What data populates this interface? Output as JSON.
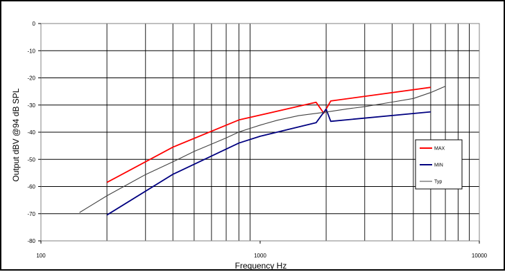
{
  "chart_data": {
    "type": "line",
    "title": "",
    "xlabel": "Frequency Hz",
    "ylabel": "Output dBV @94 dB SPL",
    "xscale": "log",
    "xlim": [
      100,
      10000
    ],
    "ylim": [
      -80,
      0
    ],
    "x_tick_labels": [
      "100",
      "1000",
      "10000"
    ],
    "y_tick_labels": [
      "0",
      "-10",
      "-20",
      "-30",
      "-40",
      "-50",
      "-60",
      "-70",
      "-80"
    ],
    "grid": true,
    "legend_position": "right",
    "series": [
      {
        "name": "MAX",
        "color": "#ff0000",
        "points": [
          [
            200,
            -58.5
          ],
          [
            400,
            -45.5
          ],
          [
            800,
            -35.5
          ],
          [
            1800,
            -29
          ],
          [
            1950,
            -33
          ],
          [
            2100,
            -28.5
          ],
          [
            6000,
            -23.5
          ]
        ]
      },
      {
        "name": "MIN",
        "color": "#000080",
        "points": [
          [
            200,
            -70.5
          ],
          [
            400,
            -55.5
          ],
          [
            800,
            -44
          ],
          [
            1000,
            -41.5
          ],
          [
            1800,
            -36.5
          ],
          [
            2000,
            -31.5
          ],
          [
            2100,
            -36
          ],
          [
            6000,
            -32.5
          ]
        ]
      },
      {
        "name": "Typ",
        "color": "#404040",
        "points": [
          [
            150,
            -69.5
          ],
          [
            200,
            -63.5
          ],
          [
            300,
            -55.5
          ],
          [
            400,
            -51
          ],
          [
            500,
            -47
          ],
          [
            600,
            -44.5
          ],
          [
            700,
            -42
          ],
          [
            800,
            -40
          ],
          [
            900,
            -38.5
          ],
          [
            1000,
            -37.5
          ],
          [
            1200,
            -35.5
          ],
          [
            1500,
            -34
          ],
          [
            2000,
            -32.5
          ],
          [
            2500,
            -31.5
          ],
          [
            3000,
            -30.5
          ],
          [
            4000,
            -29
          ],
          [
            5000,
            -27.5
          ],
          [
            6000,
            -25.5
          ],
          [
            7000,
            -23
          ]
        ]
      }
    ]
  }
}
